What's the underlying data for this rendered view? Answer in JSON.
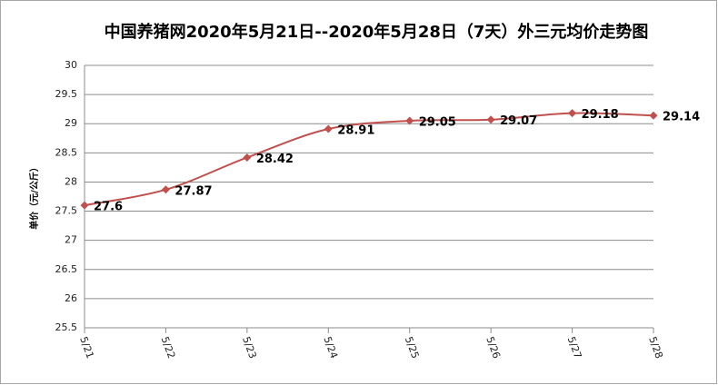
{
  "chart_data": {
    "type": "line",
    "title": "中国养猪网2020年5月21日--2020年5月28日（7天）外三元均价走势图",
    "y_label": "单价（元/公斤）",
    "categories": [
      "5/21",
      "5/22",
      "5/23",
      "5/24",
      "5/25",
      "5/26",
      "5/27",
      "5/28"
    ],
    "values": [
      27.6,
      27.87,
      28.42,
      28.91,
      29.05,
      29.07,
      29.18,
      29.14
    ],
    "color": "#c0504d",
    "ylim": [
      25.5,
      30
    ],
    "yticks": [
      25.5,
      26,
      26.5,
      27,
      27.5,
      28,
      28.5,
      29,
      29.5,
      30
    ],
    "grid": true,
    "smooth": true,
    "marker": "diamond",
    "data_labels": true
  }
}
